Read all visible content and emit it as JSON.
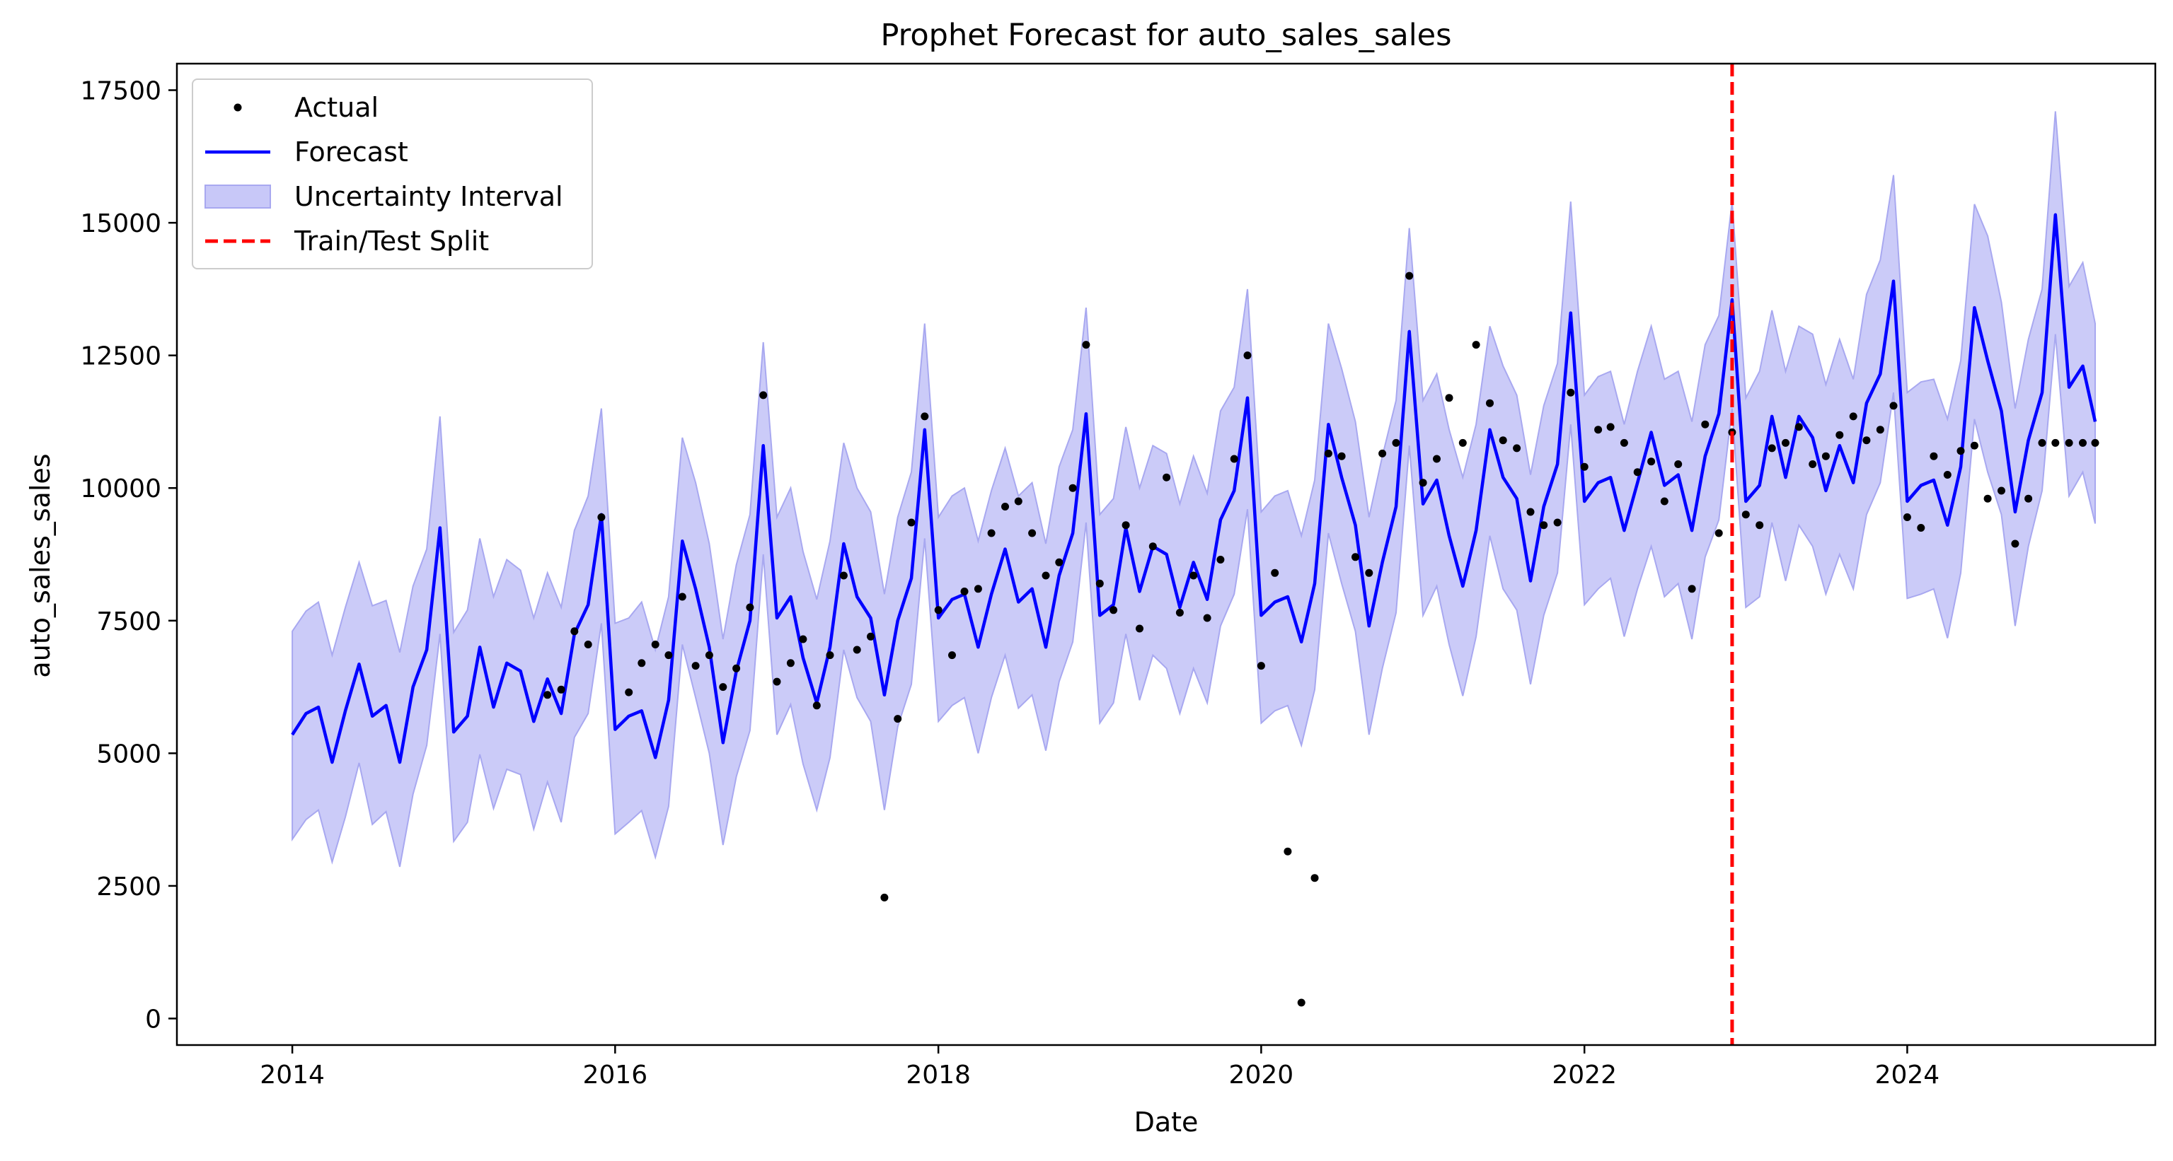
{
  "chart_data": {
    "type": "line",
    "title": "Prophet Forecast for auto_sales_sales",
    "xlabel": "Date",
    "ylabel": "auto_sales_sales",
    "x_axis": "date",
    "xlim": [
      "2013-04-15",
      "2025-07-15"
    ],
    "ylim": [
      -500,
      18000
    ],
    "xticks": [
      {
        "label": "2014",
        "value": "2014-01-01"
      },
      {
        "label": "2016",
        "value": "2016-01-01"
      },
      {
        "label": "2018",
        "value": "2018-01-01"
      },
      {
        "label": "2020",
        "value": "2020-01-01"
      },
      {
        "label": "2022",
        "value": "2022-01-01"
      },
      {
        "label": "2024",
        "value": "2024-01-01"
      }
    ],
    "yticks": [
      0,
      2500,
      5000,
      7500,
      10000,
      12500,
      15000,
      17500
    ],
    "grid": false,
    "legend_position": "top-left",
    "legend": [
      "Actual",
      "Forecast",
      "Uncertainty Interval",
      "Train/Test Split"
    ],
    "colors": {
      "actual": "#000000",
      "forecast": "#0000ff",
      "band_fill": "#c8c8f8",
      "band_edge": "#a8a8f0",
      "split": "#ff0000"
    },
    "split_date": "2022-12-01",
    "dates": [
      "2014-01",
      "2014-02",
      "2014-03",
      "2014-04",
      "2014-05",
      "2014-06",
      "2014-07",
      "2014-08",
      "2014-09",
      "2014-10",
      "2014-11",
      "2014-12",
      "2015-01",
      "2015-02",
      "2015-03",
      "2015-04",
      "2015-05",
      "2015-06",
      "2015-07",
      "2015-08",
      "2015-09",
      "2015-10",
      "2015-11",
      "2015-12",
      "2016-01",
      "2016-02",
      "2016-03",
      "2016-04",
      "2016-05",
      "2016-06",
      "2016-07",
      "2016-08",
      "2016-09",
      "2016-10",
      "2016-11",
      "2016-12",
      "2017-01",
      "2017-02",
      "2017-03",
      "2017-04",
      "2017-05",
      "2017-06",
      "2017-07",
      "2017-08",
      "2017-09",
      "2017-10",
      "2017-11",
      "2017-12",
      "2018-01",
      "2018-02",
      "2018-03",
      "2018-04",
      "2018-05",
      "2018-06",
      "2018-07",
      "2018-08",
      "2018-09",
      "2018-10",
      "2018-11",
      "2018-12",
      "2019-01",
      "2019-02",
      "2019-03",
      "2019-04",
      "2019-05",
      "2019-06",
      "2019-07",
      "2019-08",
      "2019-09",
      "2019-10",
      "2019-11",
      "2019-12",
      "2020-01",
      "2020-02",
      "2020-03",
      "2020-04",
      "2020-05",
      "2020-06",
      "2020-07",
      "2020-08",
      "2020-09",
      "2020-10",
      "2020-11",
      "2020-12",
      "2021-01",
      "2021-02",
      "2021-03",
      "2021-04",
      "2021-05",
      "2021-06",
      "2021-07",
      "2021-08",
      "2021-09",
      "2021-10",
      "2021-11",
      "2021-12",
      "2022-01",
      "2022-02",
      "2022-03",
      "2022-04",
      "2022-05",
      "2022-06",
      "2022-07",
      "2022-08",
      "2022-09",
      "2022-10",
      "2022-11",
      "2022-12",
      "2023-01",
      "2023-02",
      "2023-03",
      "2023-04",
      "2023-05",
      "2023-06",
      "2023-07",
      "2023-08",
      "2023-09",
      "2023-10",
      "2023-11",
      "2023-12",
      "2024-01",
      "2024-02",
      "2024-03",
      "2024-04",
      "2024-05",
      "2024-06",
      "2024-07",
      "2024-08",
      "2024-09",
      "2024-10",
      "2024-11",
      "2024-12",
      "2025-01",
      "2025-02",
      "2025-03"
    ],
    "series": [
      {
        "name": "Forecast",
        "values": [
          5350,
          5750,
          5870,
          4830,
          5800,
          6680,
          5700,
          5900,
          4830,
          6250,
          6950,
          9250,
          5400,
          5700,
          7000,
          5870,
          6700,
          6550,
          5600,
          6400,
          5750,
          7250,
          7800,
          9500,
          5450,
          5700,
          5800,
          4920,
          6000,
          9000,
          8100,
          7000,
          5200,
          6550,
          7500,
          10800,
          7550,
          7950,
          6800,
          5950,
          7000,
          8950,
          7950,
          7550,
          6100,
          7500,
          8300,
          11100,
          7550,
          7900,
          8000,
          7000,
          8000,
          8850,
          7850,
          8100,
          7000,
          8350,
          9150,
          11400,
          7600,
          7800,
          9250,
          8050,
          8900,
          8750,
          7750,
          8600,
          7900,
          9400,
          9950,
          11700,
          7600,
          7850,
          7950,
          7100,
          8200,
          11200,
          10200,
          9300,
          7400,
          8600,
          9650,
          12950,
          9700,
          10150,
          9100,
          8150,
          9200,
          11100,
          10200,
          9800,
          8250,
          9650,
          10450,
          13300,
          9750,
          10100,
          10200,
          9200,
          10100,
          11050,
          10050,
          10250,
          9200,
          10600,
          11400,
          13550,
          9750,
          10050,
          11350,
          10200,
          11350,
          10950,
          9950,
          10800,
          10100,
          11600,
          12150,
          13900,
          9750,
          10050,
          10150,
          9300,
          10400,
          13400,
          12400,
          11450,
          9550,
          10900,
          11800,
          15150,
          11900,
          12300,
          11250
        ]
      },
      {
        "name": "Uncertainty Interval",
        "lower": [
          3380,
          3750,
          3930,
          2950,
          3800,
          4820,
          3660,
          3900,
          2860,
          4230,
          5150,
          7250,
          3340,
          3700,
          4980,
          3960,
          4700,
          4600,
          3570,
          4460,
          3700,
          5300,
          5750,
          7450,
          3480,
          3700,
          3920,
          3040,
          4000,
          7050,
          6050,
          5000,
          3270,
          4560,
          5430,
          8750,
          5350,
          5920,
          4800,
          3930,
          4920,
          6950,
          6050,
          5600,
          3930,
          5500,
          6300,
          9050,
          5600,
          5900,
          6050,
          5000,
          6050,
          6850,
          5850,
          6100,
          5050,
          6350,
          7100,
          9350,
          5570,
          5950,
          7250,
          6000,
          6850,
          6600,
          5750,
          6600,
          5950,
          7400,
          8000,
          9600,
          5570,
          5800,
          5900,
          5150,
          6200,
          9150,
          8200,
          7300,
          5350,
          6600,
          7650,
          10800,
          7600,
          8150,
          7050,
          6080,
          7200,
          9100,
          8100,
          7700,
          6300,
          7600,
          8400,
          11200,
          7800,
          8100,
          8300,
          7200,
          8100,
          8900,
          7950,
          8200,
          7150,
          8700,
          9400,
          11500,
          7750,
          7950,
          9350,
          8250,
          9300,
          8900,
          8000,
          8750,
          8100,
          9500,
          10100,
          11800,
          7920,
          8000,
          8100,
          7170,
          8400,
          11300,
          10300,
          9500,
          7400,
          8900,
          9950,
          12900,
          9850,
          10300,
          9330
        ],
        "upper": [
          7300,
          7680,
          7850,
          6850,
          7750,
          8600,
          7780,
          7880,
          6900,
          8150,
          8850,
          11350,
          7280,
          7700,
          9050,
          7950,
          8650,
          8450,
          7550,
          8400,
          7750,
          9200,
          9850,
          11500,
          7450,
          7550,
          7850,
          6950,
          7950,
          10950,
          10100,
          8950,
          7150,
          8550,
          9500,
          12750,
          9450,
          10000,
          8800,
          7900,
          9000,
          10850,
          10000,
          9550,
          8000,
          9450,
          10300,
          13100,
          9450,
          9850,
          10000,
          9000,
          9950,
          10750,
          9850,
          10100,
          8950,
          10400,
          11100,
          13400,
          9500,
          9800,
          11150,
          10000,
          10800,
          10650,
          9700,
          10600,
          9900,
          11450,
          11900,
          13750,
          9550,
          9850,
          9950,
          9100,
          10150,
          13100,
          12250,
          11250,
          9450,
          10600,
          11650,
          14900,
          11650,
          12150,
          11100,
          10200,
          11200,
          13050,
          12300,
          11750,
          10250,
          11550,
          12350,
          15400,
          11750,
          12100,
          12200,
          11200,
          12200,
          13050,
          12050,
          12200,
          11250,
          12700,
          13250,
          15400,
          11700,
          12200,
          13350,
          12200,
          13050,
          12900,
          11950,
          12800,
          12050,
          13650,
          14300,
          15900,
          11800,
          12000,
          12050,
          11300,
          12400,
          15350,
          14750,
          13500,
          11500,
          12800,
          13750,
          17100,
          13800,
          14250,
          13100
        ]
      },
      {
        "name": "Actual",
        "type": "scatter",
        "values": [
          null,
          null,
          null,
          null,
          null,
          null,
          null,
          null,
          null,
          null,
          null,
          null,
          null,
          null,
          null,
          null,
          null,
          null,
          null,
          6100,
          6200,
          7300,
          7050,
          9450,
          null,
          6150,
          6700,
          7050,
          6850,
          7950,
          6650,
          6850,
          6250,
          6600,
          7750,
          11750,
          6350,
          6700,
          7150,
          5900,
          6850,
          8350,
          6950,
          7200,
          2280,
          5650,
          9350,
          11350,
          7700,
          6850,
          8050,
          8100,
          9150,
          9650,
          9750,
          9150,
          8350,
          8600,
          10000,
          12700,
          8200,
          7700,
          9300,
          7350,
          8900,
          10200,
          7650,
          8350,
          7550,
          8650,
          10550,
          12500,
          6650,
          8400,
          3150,
          300,
          2650,
          10650,
          10600,
          8700,
          8400,
          10650,
          10850,
          14000,
          10100,
          10550,
          11700,
          10850,
          12700,
          11600,
          10900,
          10750,
          9550,
          9300,
          9350,
          11800,
          10400,
          11100,
          11150,
          10850,
          10300,
          10500,
          9750,
          10450,
          8100,
          11200,
          9150,
          11050,
          9500,
          9300,
          10750,
          10850,
          11150,
          10450,
          10600,
          11000,
          11350,
          10900,
          11100,
          11550,
          9450,
          9250,
          10600,
          10250,
          10700,
          10800,
          9800,
          9950,
          8950,
          9800,
          10850,
          10850,
          10850,
          10850,
          10850
        ]
      }
    ]
  }
}
